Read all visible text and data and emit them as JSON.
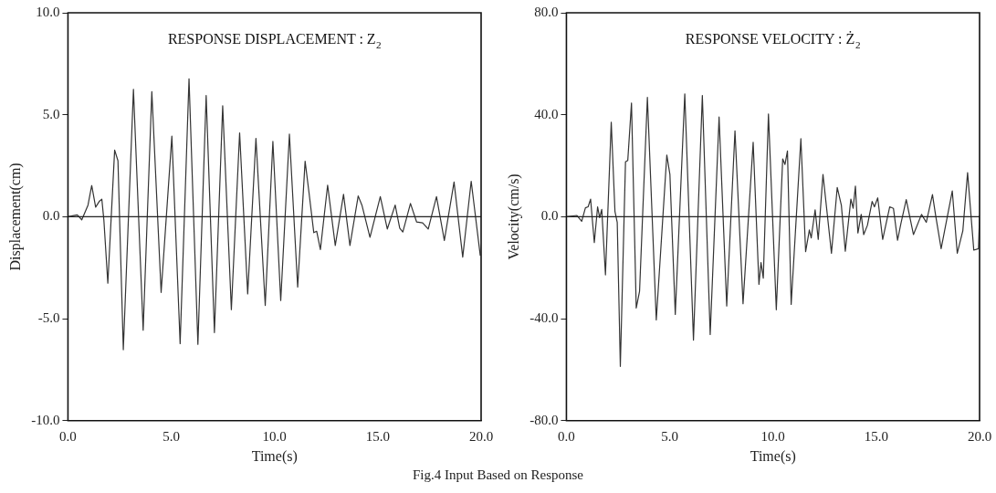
{
  "chart_data": [
    {
      "type": "line",
      "title": "RESPONSE DISPLACEMENT : Z$_{2}$",
      "xlabel": "Time(s)",
      "ylabel": "Displacement(cm)",
      "xlim": [
        0,
        20
      ],
      "ylim": [
        -10,
        10
      ],
      "xticks": [
        {
          "value": 0,
          "label": "0.0"
        },
        {
          "value": 5,
          "label": "5.0"
        },
        {
          "value": 10,
          "label": "10.0"
        },
        {
          "value": 15,
          "label": "15.0"
        },
        {
          "value": 20,
          "label": "20.0"
        }
      ],
      "yticks": [
        {
          "value": -10,
          "label": "-10.0"
        },
        {
          "value": -5,
          "label": "-5.0"
        },
        {
          "value": 0,
          "label": "0.0"
        },
        {
          "value": 5,
          "label": "5.0"
        },
        {
          "value": 10,
          "label": "10.0"
        }
      ],
      "grid": false,
      "legend": false,
      "marker": "none",
      "line_style": "solid",
      "ref_lines": [
        {
          "axis": "y",
          "value": 0,
          "color": "#222222"
        }
      ],
      "annotations": [
        "Fig.4  Input Based on Response"
      ],
      "x": [
        0,
        0.45,
        0.67,
        0.97,
        1.15,
        1.34,
        1.53,
        1.64,
        1.74,
        1.93,
        2.26,
        2.42,
        2.68,
        3.17,
        3.64,
        4.06,
        4.51,
        5.03,
        5.43,
        5.86,
        6.29,
        6.69,
        7.09,
        7.49,
        7.91,
        8.31,
        8.7,
        9.1,
        9.55,
        9.92,
        10.3,
        10.72,
        11.12,
        11.48,
        11.67,
        11.9,
        12.04,
        12.22,
        12.57,
        12.94,
        13.34,
        13.65,
        14.05,
        14.23,
        14.62,
        15.12,
        15.46,
        15.84,
        16.06,
        16.21,
        16.58,
        16.88,
        17.17,
        17.44,
        17.84,
        18.22,
        18.69,
        19.11,
        19.52,
        19.96
      ],
      "series": [
        {
          "color": "#333333",
          "values": [
            0,
            0.09,
            -0.15,
            0.57,
            1.53,
            0.47,
            0.77,
            0.86,
            -0.18,
            -3.26,
            3.27,
            2.75,
            -6.52,
            6.25,
            -5.56,
            6.13,
            -3.71,
            3.95,
            -6.22,
            6.76,
            -6.26,
            5.95,
            -5.68,
            5.44,
            -4.56,
            4.11,
            -3.78,
            3.84,
            -4.35,
            3.69,
            -4.11,
            4.05,
            -3.45,
            2.72,
            1.17,
            -0.78,
            -0.71,
            -1.61,
            1.55,
            -1.41,
            1.1,
            -1.41,
            1.02,
            0.57,
            -1.01,
            0.99,
            -0.6,
            0.57,
            -0.56,
            -0.75,
            0.65,
            -0.26,
            -0.3,
            -0.6,
            0.99,
            -1.16,
            1.7,
            -1.98,
            1.74,
            -1.91
          ]
        }
      ]
    },
    {
      "type": "line",
      "title": "RESPONSE VELOCITY : Ż$_{2}$",
      "xlabel": "Time(s)",
      "ylabel": "Velocity(cm/s)",
      "xlim": [
        0,
        20
      ],
      "ylim": [
        -80,
        80
      ],
      "xticks": [
        {
          "value": 0,
          "label": "0.0"
        },
        {
          "value": 5,
          "label": "5.0"
        },
        {
          "value": 10,
          "label": "10.0"
        },
        {
          "value": 15,
          "label": "15.0"
        },
        {
          "value": 20,
          "label": "20.0"
        }
      ],
      "yticks": [
        {
          "value": -80,
          "label": "-80.0"
        },
        {
          "value": -40,
          "label": "-40.0"
        },
        {
          "value": 0,
          "label": "0.0"
        },
        {
          "value": 40,
          "label": "40.0"
        },
        {
          "value": 80,
          "label": "80.0"
        }
      ],
      "grid": false,
      "legend": false,
      "marker": "none",
      "line_style": "solid",
      "ref_lines": [
        {
          "axis": "y",
          "value": 0,
          "color": "#222222"
        }
      ],
      "x": [
        0,
        0.51,
        0.74,
        0.92,
        1.05,
        1.17,
        1.35,
        1.51,
        1.61,
        1.71,
        1.89,
        2.17,
        2.35,
        2.46,
        2.61,
        2.86,
        2.97,
        3.15,
        3.38,
        3.54,
        3.92,
        4.35,
        4.86,
        5.01,
        5.27,
        5.73,
        6.15,
        6.58,
        6.96,
        7.39,
        7.76,
        8.16,
        8.55,
        9.04,
        9.32,
        9.42,
        9.53,
        9.78,
        10.16,
        10.47,
        10.58,
        10.7,
        10.88,
        11.35,
        11.58,
        11.76,
        11.85,
        12.04,
        12.19,
        12.42,
        12.83,
        13.11,
        13.31,
        13.5,
        13.77,
        13.88,
        13.99,
        14.11,
        14.27,
        14.39,
        14.57,
        14.8,
        14.91,
        15.07,
        15.31,
        15.65,
        15.83,
        16.03,
        16.19,
        16.45,
        16.8,
        17.19,
        17.42,
        17.72,
        17.88,
        18.14,
        18.68,
        18.92,
        19.19,
        19.42,
        19.72,
        19.95,
        20
      ],
      "series": [
        {
          "color": "#333333",
          "values": [
            0,
            0.5,
            -1.8,
            3.5,
            3.9,
            6.9,
            -10.1,
            3.9,
            -0.4,
            2.9,
            -22.8,
            37.1,
            2.1,
            -2.2,
            -58.7,
            21.5,
            22.1,
            44.6,
            -35.8,
            -29.3,
            46.8,
            -40.5,
            24.2,
            16.6,
            -38.3,
            48.2,
            -48.4,
            47.6,
            -46.2,
            39.1,
            -35,
            33.7,
            -34.1,
            29.2,
            -26.5,
            -18,
            -24.1,
            40.3,
            -36.5,
            22.7,
            20.5,
            25.8,
            -34.4,
            30.6,
            -13.7,
            -5.2,
            -8.3,
            2.7,
            -8.9,
            16.6,
            -14.3,
            11.5,
            4.5,
            -13.5,
            6.9,
            3.3,
            12,
            -6.4,
            0.9,
            -7,
            -3.4,
            6,
            3.9,
            7.4,
            -8.9,
            3.9,
            3.3,
            -9.2,
            -2.8,
            6.7,
            -7,
            0.9,
            -2.2,
            8.7,
            0.2,
            -12.5,
            10.1,
            -14.3,
            -5.5,
            17.3,
            -13.1,
            -12.5,
            0.5
          ]
        }
      ]
    }
  ]
}
